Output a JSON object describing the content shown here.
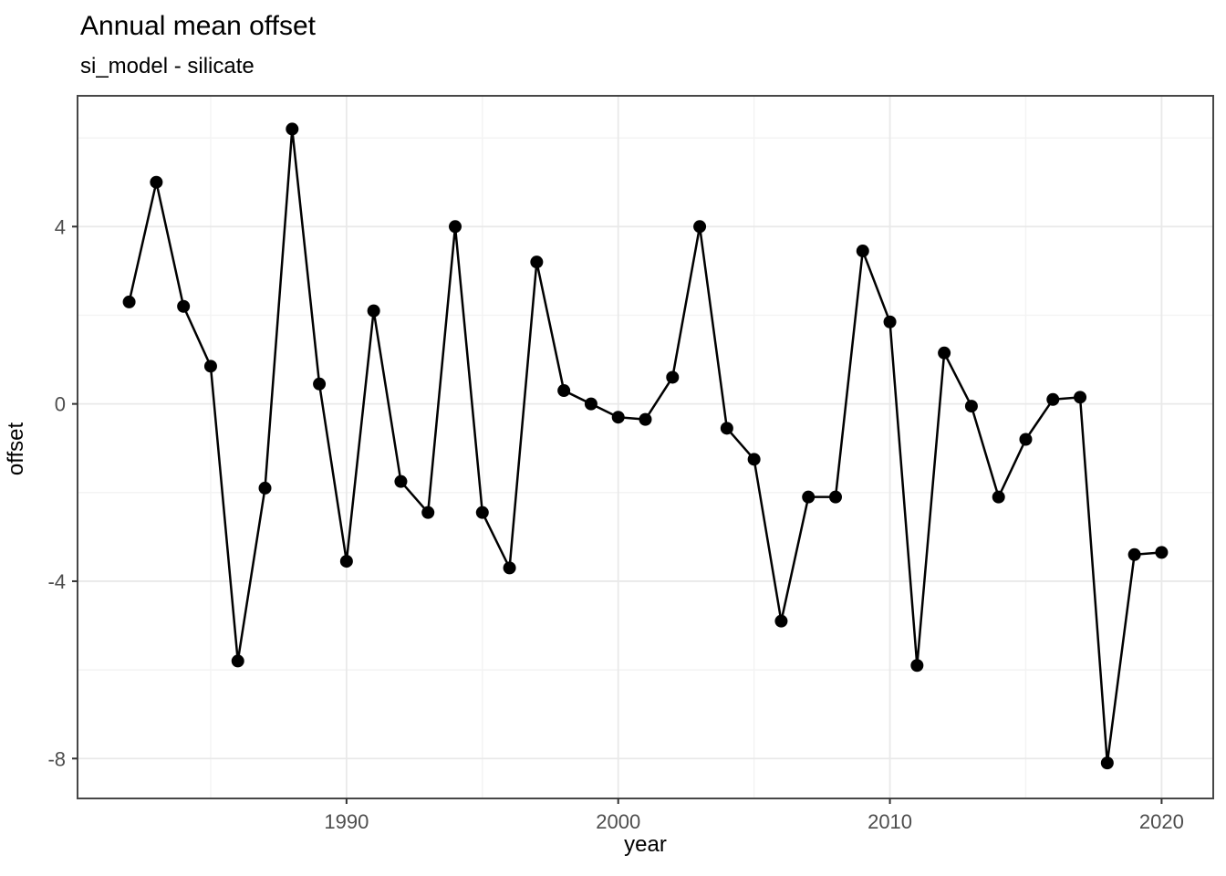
{
  "header": {
    "title": "Annual mean offset",
    "subtitle": "si_model - silicate"
  },
  "chart_data": {
    "type": "line",
    "title": "Annual mean offset",
    "subtitle": "si_model - silicate",
    "xlabel": "year",
    "ylabel": "offset",
    "x": [
      1982,
      1983,
      1984,
      1985,
      1986,
      1987,
      1988,
      1989,
      1990,
      1991,
      1992,
      1993,
      1994,
      1995,
      1996,
      1997,
      1998,
      1999,
      2000,
      2001,
      2002,
      2003,
      2004,
      2005,
      2006,
      2007,
      2008,
      2009,
      2010,
      2011,
      2012,
      2013,
      2014,
      2015,
      2016,
      2017,
      2018,
      2019,
      2020
    ],
    "values": [
      2.3,
      5.0,
      2.2,
      0.85,
      -5.8,
      -1.9,
      6.2,
      0.45,
      -3.55,
      2.1,
      -1.75,
      -2.45,
      4.0,
      -2.45,
      -3.7,
      3.2,
      0.3,
      0.0,
      -0.3,
      -0.35,
      0.6,
      4.0,
      -0.55,
      -1.25,
      -4.9,
      -2.1,
      -2.1,
      3.45,
      1.85,
      -5.9,
      1.15,
      -0.05,
      -2.1,
      -0.8,
      0.1,
      0.15,
      -8.1,
      -3.4,
      -3.35
    ],
    "xlim": [
      1980.1,
      2021.9
    ],
    "ylim": [
      -8.9,
      6.95
    ],
    "x_ticks": [
      1990,
      2000,
      2010,
      2020
    ],
    "y_ticks": [
      4,
      0,
      -4,
      -8
    ],
    "x_minor_gridlines": [
      1985,
      1995,
      2005,
      2015
    ],
    "y_minor_gridlines": [
      6,
      2,
      -2,
      -6
    ],
    "grid": true,
    "legend": "none",
    "style": {
      "line_color": "#000000",
      "point_color": "#000000",
      "point_radius": 7,
      "line_width": 2.5,
      "panel_background": "#ffffff",
      "panel_border_color": "#474747",
      "grid_major_color": "#e9e9e9",
      "grid_minor_color": "#f3f3f3",
      "tick_mark_color": "#333333",
      "tick_label_color": "#4d4d4d"
    }
  }
}
